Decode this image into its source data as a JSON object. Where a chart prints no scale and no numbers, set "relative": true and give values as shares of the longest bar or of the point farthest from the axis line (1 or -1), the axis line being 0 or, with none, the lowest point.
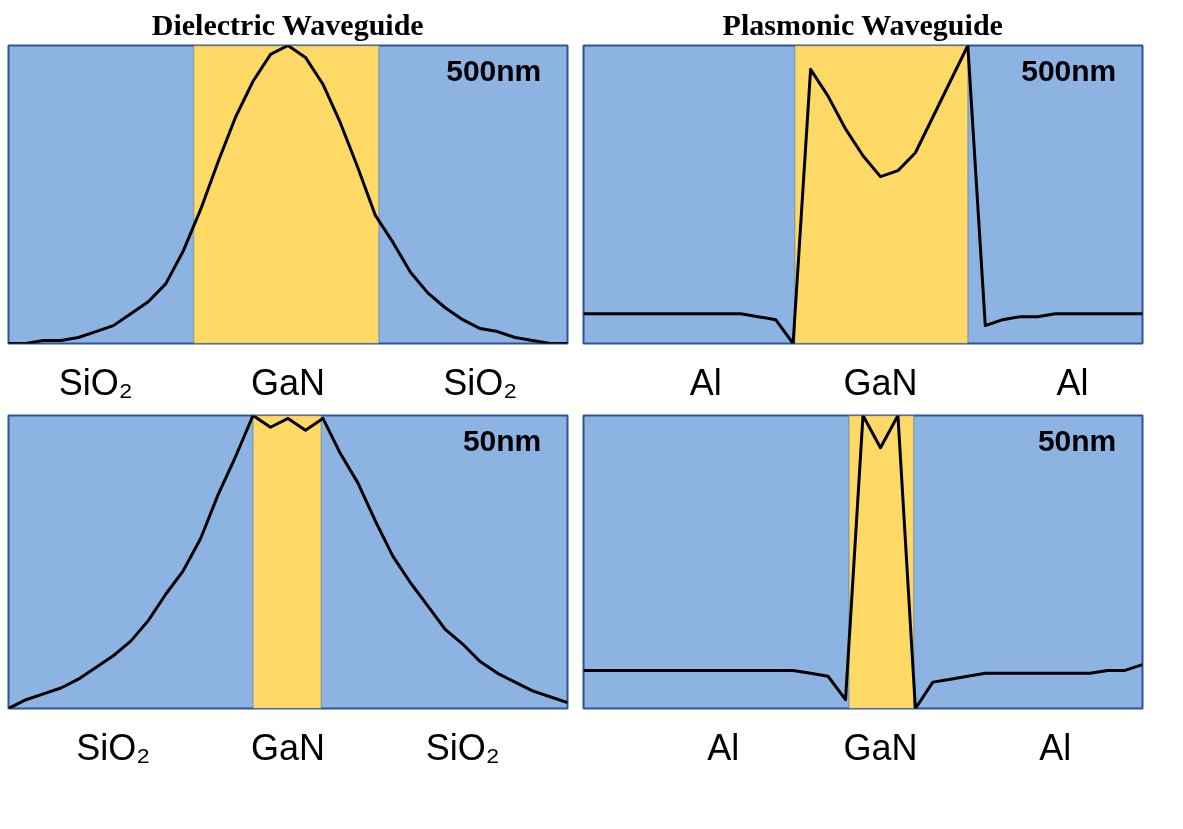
{
  "chart_data": [
    {
      "type": "line",
      "title": "Dielectric Waveguide",
      "relative": true,
      "grid": false,
      "tick_labels": "x",
      "line_style": "solid",
      "categories": [
        null,
        null,
        null,
        null,
        null,
        "SiO₂",
        null,
        null,
        null,
        null,
        null,
        null,
        null,
        null,
        null,
        null,
        "GaN",
        null,
        null,
        null,
        null,
        null,
        null,
        null,
        null,
        null,
        null,
        "SiO₂",
        null,
        null,
        null,
        null,
        null
      ],
      "series": [
        {
          "color": "#000000",
          "values": [
            0,
            0.0,
            0.01,
            0.01,
            0.02,
            0.04,
            0.06,
            0.1,
            0.14,
            0.2,
            0.31,
            0.45,
            0.61,
            0.76,
            0.88,
            0.97,
            1,
            0.96,
            0.87,
            0.74,
            0.59,
            0.43,
            0.34,
            0.24,
            0.17,
            0.12,
            0.08,
            0.05,
            0.04,
            0.02,
            0.01,
            0.0,
            0
          ]
        }
      ],
      "annotations": [
        "500nm"
      ]
    },
    {
      "type": "line",
      "title": "Plasmonic Waveguide",
      "relative": true,
      "grid": false,
      "tick_labels": "x",
      "line_style": "solid",
      "categories": [
        null,
        null,
        null,
        null,
        null,
        null,
        null,
        "Al",
        null,
        null,
        null,
        null,
        null,
        null,
        null,
        null,
        null,
        "GaN",
        null,
        null,
        null,
        null,
        null,
        null,
        null,
        null,
        null,
        null,
        "Al",
        null,
        null,
        null,
        null
      ],
      "series": [
        {
          "color": "#000000",
          "values": [
            0.1,
            0.1,
            0.1,
            0.1,
            0.1,
            0.1,
            0.1,
            0.1,
            0.1,
            0.1,
            0.09,
            0.08,
            0,
            0.92,
            0.83,
            0.72,
            0.63,
            0.56,
            0.58,
            0.64,
            0.76,
            0.88,
            1,
            0.06,
            0.08,
            0.09,
            0.09,
            0.1,
            0.1,
            0.1,
            0.1,
            0.1,
            0.1
          ]
        }
      ],
      "annotations": [
        "500nm"
      ]
    },
    {
      "type": "line",
      "relative": true,
      "grid": false,
      "tick_labels": "x",
      "line_style": "solid",
      "categories": [
        null,
        null,
        null,
        null,
        null,
        null,
        "SiO₂",
        null,
        null,
        null,
        null,
        null,
        null,
        null,
        null,
        null,
        "GaN",
        null,
        null,
        null,
        null,
        null,
        null,
        null,
        null,
        null,
        "SiO₂",
        null,
        null,
        null,
        null,
        null,
        null
      ],
      "series": [
        {
          "color": "#000000",
          "values": [
            0,
            0.03,
            0.05,
            0.07,
            0.1,
            0.14,
            0.18,
            0.23,
            0.3,
            0.39,
            0.47,
            0.58,
            0.73,
            0.86,
            1.0,
            0.96,
            0.99,
            0.95,
            0.99,
            0.87,
            0.77,
            0.64,
            0.52,
            0.43,
            0.35,
            0.27,
            0.22,
            0.16,
            0.12,
            0.09,
            0.06,
            0.04,
            0.02
          ]
        }
      ],
      "annotations": [
        "50nm"
      ]
    },
    {
      "type": "line",
      "relative": true,
      "grid": false,
      "tick_labels": "x",
      "line_style": "solid",
      "categories": [
        null,
        null,
        null,
        null,
        null,
        null,
        null,
        null,
        "Al",
        null,
        null,
        null,
        null,
        null,
        null,
        null,
        null,
        "GaN",
        null,
        null,
        null,
        null,
        null,
        null,
        null,
        null,
        null,
        "Al",
        null,
        null,
        null,
        null,
        null
      ],
      "series": [
        {
          "color": "#000000",
          "values": [
            0.13,
            0.13,
            0.13,
            0.13,
            0.13,
            0.13,
            0.13,
            0.13,
            0.13,
            0.13,
            0.13,
            0.13,
            0.13,
            0.12,
            0.11,
            0.03,
            1,
            0.89,
            1,
            0,
            0.09,
            0.1,
            0.11,
            0.12,
            0.12,
            0.12,
            0.12,
            0.12,
            0.12,
            0.12,
            0.13,
            0.13,
            0.15
          ]
        }
      ],
      "annotations": [
        "50nm"
      ]
    }
  ]
}
